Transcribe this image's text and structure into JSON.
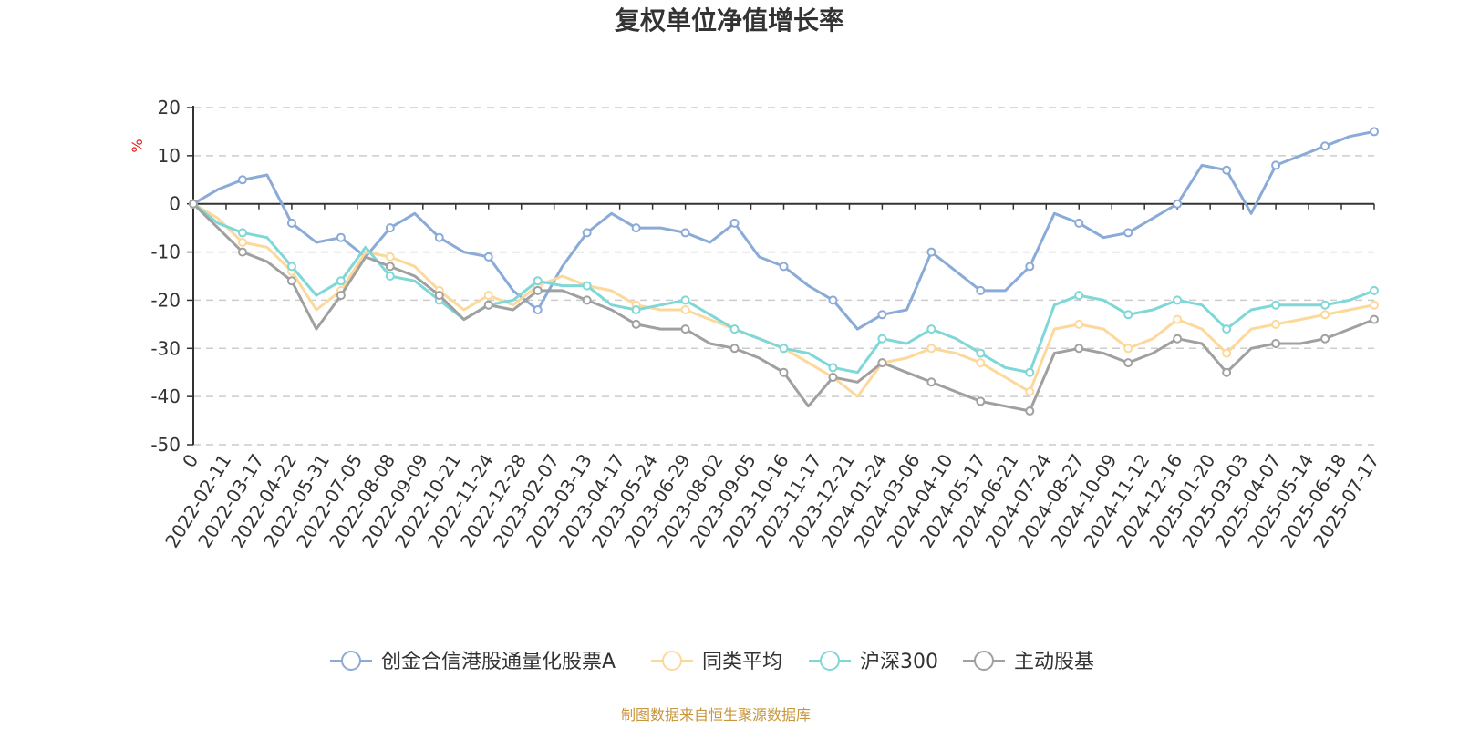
{
  "chart_data": {
    "type": "line",
    "title": "复权单位净值增长率",
    "ylabel": "%",
    "ylim": [
      -50,
      20
    ],
    "yticks": [
      20,
      10,
      0,
      -10,
      -20,
      -30,
      -40,
      -50
    ],
    "x_tick_labels": [
      "0",
      "2022-02-11",
      "2022-03-17",
      "2022-04-22",
      "2022-05-31",
      "2022-07-05",
      "2022-08-08",
      "2022-09-09",
      "2022-10-21",
      "2022-11-24",
      "2022-12-28",
      "2023-02-07",
      "2023-03-13",
      "2023-04-17",
      "2023-05-24",
      "2023-06-29",
      "2023-08-02",
      "2023-09-05",
      "2023-10-16",
      "2023-11-17",
      "2023-12-21",
      "2024-01-24",
      "2024-03-06",
      "2024-04-10",
      "2024-05-17",
      "2024-06-21",
      "2024-07-24",
      "2024-08-27",
      "2024-10-09",
      "2024-11-12",
      "2024-12-16",
      "2025-01-20",
      "2025-03-03",
      "2025-04-07",
      "2025-05-14",
      "2025-06-18",
      "2025-07-17"
    ],
    "grid": true,
    "legend_position": "bottom",
    "series": [
      {
        "name": "创金合信港股通量化股票A",
        "color": "#8aaad8",
        "values": [
          0,
          3,
          5,
          6,
          -4,
          -8,
          -7,
          -11,
          -5,
          -2,
          -7,
          -10,
          -11,
          -18,
          -22,
          -13,
          -6,
          -2,
          -5,
          -5,
          -6,
          -8,
          -4,
          -11,
          -13,
          -17,
          -20,
          -26,
          -23,
          -22,
          -10,
          -14,
          -18,
          -18,
          -13,
          -2,
          -4,
          -7,
          -6,
          -3,
          0,
          8,
          7,
          -2,
          8,
          10,
          12,
          14,
          15
        ]
      },
      {
        "name": "同类平均",
        "color": "#fdd89b",
        "values": [
          0,
          -3,
          -8,
          -9,
          -14,
          -22,
          -18,
          -10,
          -11,
          -13,
          -18,
          -22,
          -19,
          -21,
          -17,
          -15,
          -17,
          -18,
          -21,
          -22,
          -22,
          -24,
          -26,
          -28,
          -30,
          -33,
          -36,
          -40,
          -33,
          -32,
          -30,
          -31,
          -33,
          -36,
          -39,
          -26,
          -25,
          -26,
          -30,
          -28,
          -24,
          -26,
          -31,
          -26,
          -25,
          -24,
          -23,
          -22,
          -21
        ]
      },
      {
        "name": "沪深300",
        "color": "#7fd7d7",
        "values": [
          0,
          -4,
          -6,
          -7,
          -13,
          -19,
          -16,
          -9,
          -15,
          -16,
          -20,
          -24,
          -21,
          -20,
          -16,
          -17,
          -17,
          -21,
          -22,
          -21,
          -20,
          -23,
          -26,
          -28,
          -30,
          -31,
          -34,
          -35,
          -28,
          -29,
          -26,
          -28,
          -31,
          -34,
          -35,
          -21,
          -19,
          -20,
          -23,
          -22,
          -20,
          -21,
          -26,
          -22,
          -21,
          -21,
          -21,
          -20,
          -18
        ]
      },
      {
        "name": "主动股基",
        "color": "#a0a0a0",
        "values": [
          0,
          -5,
          -10,
          -12,
          -16,
          -26,
          -19,
          -11,
          -13,
          -15,
          -19,
          -24,
          -21,
          -22,
          -18,
          -18,
          -20,
          -22,
          -25,
          -26,
          -26,
          -29,
          -30,
          -32,
          -35,
          -42,
          -36,
          -37,
          -33,
          -35,
          -37,
          -39,
          -41,
          -42,
          -43,
          -31,
          -30,
          -31,
          -33,
          -31,
          -28,
          -29,
          -35,
          -30,
          -29,
          -29,
          -28,
          -26,
          -24
        ]
      }
    ]
  },
  "source_note": "制图数据来自恒生聚源数据库"
}
